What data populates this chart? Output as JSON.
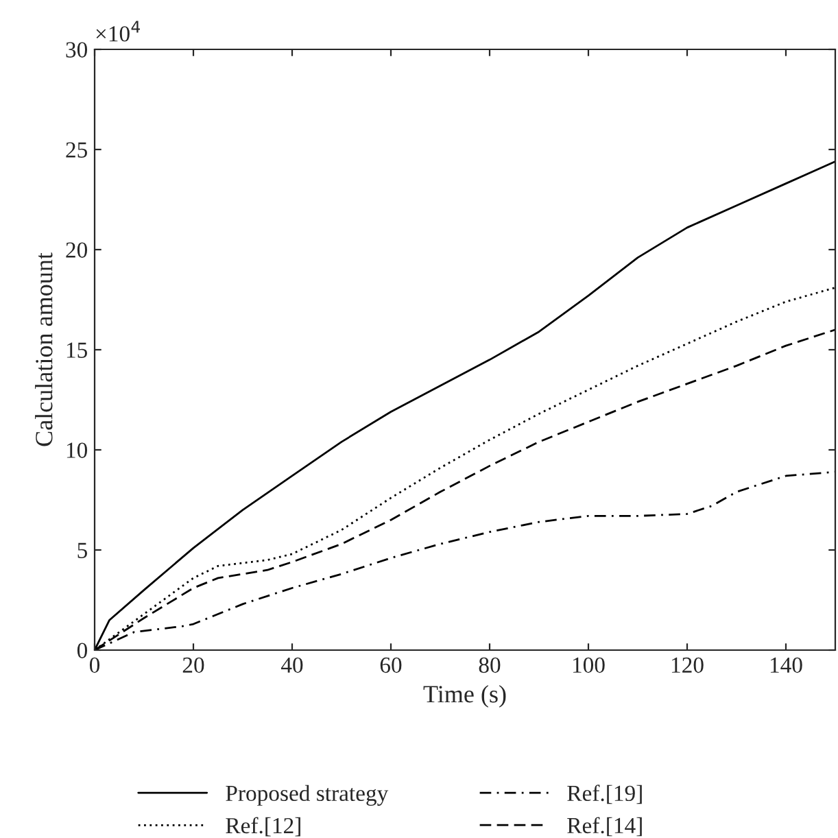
{
  "chart_data": {
    "type": "line",
    "xlabel": "Time (s)",
    "ylabel": "Calculation amount",
    "annotations": [
      "×10$^{4}$"
    ],
    "xlim": [
      0,
      150
    ],
    "xticks": [
      0,
      20,
      40,
      60,
      80,
      100,
      120,
      140
    ],
    "ylim": [
      0,
      30
    ],
    "yticks": [
      0,
      5,
      10,
      15,
      20,
      25,
      30
    ],
    "grid": false,
    "legend": "bottom",
    "marker": "none",
    "series": [
      {
        "name": "Proposed strategy",
        "color": "#000000",
        "line_style": "solid",
        "x": [
          0,
          3,
          10,
          20,
          30,
          40,
          50,
          60,
          70,
          80,
          90,
          100,
          110,
          120,
          130,
          140,
          150
        ],
        "values": [
          0,
          1.5,
          3,
          5.1,
          7,
          8.7,
          10.4,
          11.9,
          13.2,
          14.5,
          15.9,
          17.7,
          19.6,
          21.1,
          22.2,
          23.3,
          24.4
        ]
      },
      {
        "name": "Ref.[12]",
        "color": "#000000",
        "line_style": "dotted",
        "x": [
          0,
          10,
          20,
          25,
          35,
          40,
          50,
          60,
          70,
          80,
          90,
          100,
          110,
          120,
          130,
          140,
          150
        ],
        "values": [
          0,
          1.8,
          3.6,
          4.2,
          4.5,
          4.8,
          6,
          7.6,
          9.1,
          10.5,
          11.8,
          13,
          14.2,
          15.3,
          16.4,
          17.4,
          18.1
        ]
      },
      {
        "name": "Ref.[19]",
        "color": "#000000",
        "line_style": "dashdot",
        "x": [
          0,
          8,
          18,
          20,
          30,
          40,
          50,
          60,
          70,
          80,
          90,
          100,
          110,
          120,
          125,
          130,
          140,
          150
        ],
        "values": [
          0,
          0.9,
          1.2,
          1.3,
          2.3,
          3.1,
          3.8,
          4.6,
          5.3,
          5.9,
          6.4,
          6.7,
          6.7,
          6.8,
          7.2,
          7.9,
          8.7,
          8.9
        ]
      },
      {
        "name": "Ref.[14]",
        "color": "#000000",
        "line_style": "dashed",
        "x": [
          0,
          10,
          20,
          25,
          35,
          40,
          50,
          60,
          70,
          80,
          90,
          100,
          110,
          120,
          130,
          140,
          150
        ],
        "values": [
          0,
          1.6,
          3.1,
          3.6,
          4,
          4.4,
          5.3,
          6.5,
          7.9,
          9.2,
          10.4,
          11.4,
          12.4,
          13.3,
          14.2,
          15.2,
          16
        ]
      }
    ]
  }
}
